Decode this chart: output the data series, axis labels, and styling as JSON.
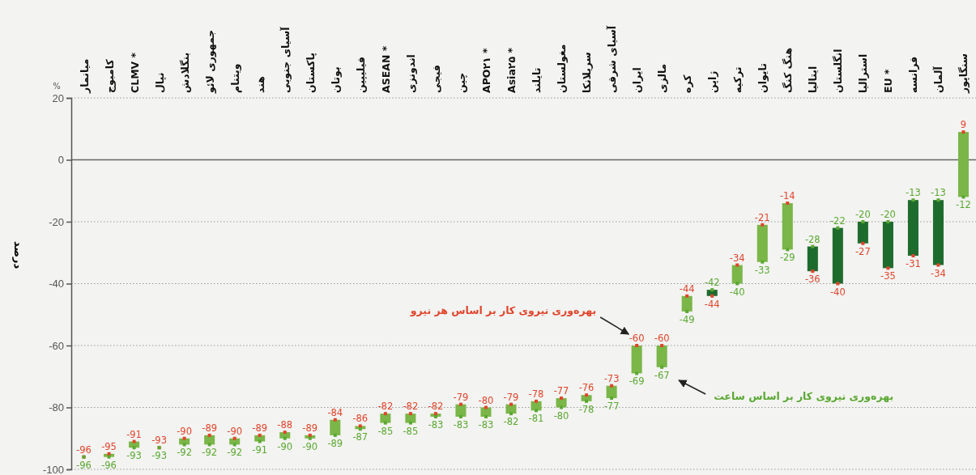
{
  "chart_data": {
    "type": "bar",
    "ylabel": "درصد",
    "annotations": [
      "%"
    ],
    "categories": [
      "میانمار",
      "کامبوج",
      "CLMV *",
      "نپال",
      "بنگلادش",
      "جمهوری لائو",
      "ویتنام",
      "هند",
      "آسیای جنوبی",
      "پاکستان",
      "بوتان",
      "فیلیپین",
      "ASEAN *",
      "اندونزی",
      "فیجی",
      "چین",
      "APO۲۱ *",
      "Asia۲۵ *",
      "تایلند",
      "مغولستان",
      "سریلانکا",
      "آسیای شرقی",
      "ایران",
      "مالزی",
      "کره",
      "ژاپن",
      "ترکیه",
      "تایوان",
      "هنگ کنگ",
      "ایتالیا",
      "انگلستان",
      "استرالیا",
      "EU *",
      "فرانسه",
      "آلمان",
      "سنگاپور"
    ],
    "series": [
      {
        "base": [
          null,
          -96,
          -93,
          null,
          -92,
          -92,
          -92,
          -91,
          -90,
          -90,
          -89,
          -87,
          -85,
          -85,
          -83,
          -83,
          -83,
          -82,
          -81,
          -80,
          -78,
          -77,
          -69,
          -67,
          -49,
          -42,
          -40,
          -33,
          -29,
          -28,
          -22,
          -20,
          -20,
          -13,
          -13,
          -12
        ],
        "values": [
          null,
          1,
          2,
          null,
          2,
          3,
          2,
          2,
          2,
          1,
          5,
          1,
          3,
          3,
          1,
          4,
          3,
          3,
          3,
          3,
          2,
          4,
          9,
          7,
          5,
          -2,
          6,
          12,
          15,
          -8,
          -18,
          -7,
          -15,
          -18,
          -21,
          21
        ],
        "colors": [
          null,
          "#7ab648",
          "#7ab648",
          null,
          "#7ab648",
          "#7ab648",
          "#7ab648",
          "#7ab648",
          "#7ab648",
          "#7ab648",
          "#7ab648",
          "#7ab648",
          "#7ab648",
          "#7ab648",
          "#7ab648",
          "#7ab648",
          "#7ab648",
          "#7ab648",
          "#7ab648",
          "#7ab648",
          "#7ab648",
          "#7ab648",
          "#7ab648",
          "#7ab648",
          "#7ab648",
          "#1e6b2e",
          "#7ab648",
          "#7ab648",
          "#7ab648",
          "#1e6b2e",
          "#1e6b2e",
          "#1e6b2e",
          "#1e6b2e",
          "#1e6b2e",
          "#1e6b2e",
          "#7ab648"
        ]
      },
      {
        "type": "scatter",
        "name": "بهره‌وری نیروی کار بر اساس هر نیرو",
        "color": "#e0452c",
        "marker": "square",
        "data_labels": true,
        "values": [
          -96,
          -95,
          -91,
          -93,
          -90,
          -89,
          -90,
          -89,
          -88,
          -89,
          -84,
          -86,
          -82,
          -82,
          -82,
          -79,
          -80,
          -79,
          -78,
          -77,
          -76,
          -73,
          -60,
          -60,
          -44,
          -44,
          -34,
          -21,
          -14,
          -36,
          -40,
          -27,
          -35,
          -31,
          -34,
          9
        ]
      },
      {
        "type": "scatter",
        "name": "بهره‌وری نیروی کار بر اساس ساعت",
        "color": "#5aa832",
        "marker": "square",
        "data_labels": true,
        "values": [
          -96,
          -96,
          -93,
          -93,
          -92,
          -92,
          -92,
          -91,
          -90,
          -90,
          -89,
          -87,
          -85,
          -85,
          -83,
          -83,
          -83,
          -82,
          -81,
          -80,
          -78,
          -77,
          -69,
          -67,
          -49,
          -42,
          -40,
          -33,
          -29,
          -28,
          -22,
          -20,
          -20,
          -13,
          -13,
          -12
        ]
      }
    ],
    "ylim": [
      -100,
      20
    ],
    "yticks": [
      -100,
      -80,
      -60,
      -40,
      -20,
      0,
      20
    ],
    "grid": "y",
    "ref_lines": [
      {
        "axis": "y",
        "value": 0,
        "color": "#666666",
        "line_style": "solid"
      }
    ]
  }
}
